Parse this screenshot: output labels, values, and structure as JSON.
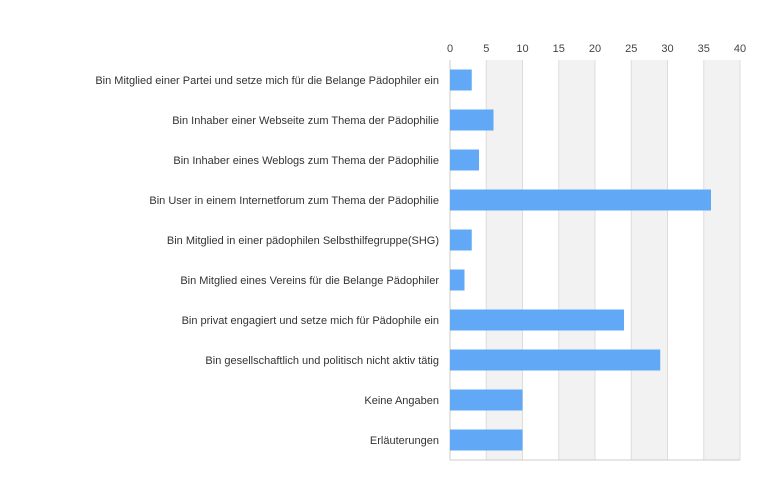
{
  "chart_data": {
    "type": "bar",
    "orientation": "horizontal",
    "title": "",
    "xlabel": "",
    "ylabel": "",
    "categories": [
      "Bin Mitglied einer Partei und setze mich für die Belange Pädophiler ein",
      "Bin Inhaber einer Webseite zum Thema der Pädophilie",
      "Bin Inhaber eines Weblogs zum Thema der Pädophilie",
      "Bin User in einem Internetforum zum Thema der Pädophilie",
      "Bin Mitglied in einer pädophilen Selbsthilfegruppe(SHG)",
      "Bin Mitglied eines Vereins für die Belange Pädophiler",
      "Bin privat engagiert und setze mich für Pädophile ein",
      "Bin gesellschaftlich und politisch nicht aktiv tätig",
      "Keine Angaben",
      "Erläuterungen"
    ],
    "values": [
      3,
      6,
      4,
      36,
      3,
      2,
      24,
      29,
      10,
      10
    ],
    "xlim": [
      0,
      40
    ],
    "xticks": [
      "0",
      "5",
      "10",
      "15",
      "20",
      "25",
      "30",
      "35",
      "40"
    ],
    "axis_position": "top",
    "grid": true,
    "alternating_bands": true,
    "legend": "none",
    "colors": {
      "bar": "#61a8f7",
      "band": "#f2f2f2",
      "gridline": "#dddddd",
      "axis": "#cccccc"
    }
  }
}
